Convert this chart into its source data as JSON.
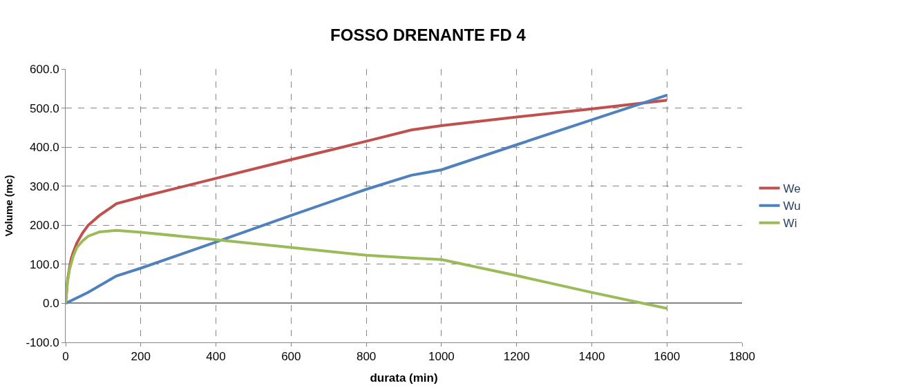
{
  "chart_data": {
    "type": "line",
    "title": "FOSSO DRENANTE FD 4",
    "xlabel": "durata (min)",
    "ylabel": "Volume (mc)",
    "xlim": [
      0,
      1800
    ],
    "xticks": [
      0,
      200,
      400,
      600,
      800,
      1000,
      1200,
      1400,
      1600,
      1800
    ],
    "ylim": [
      -100,
      600
    ],
    "yticks": [
      {
        "value": -100,
        "label": "-100.0"
      },
      {
        "value": 0,
        "label": "0.0"
      },
      {
        "value": 100,
        "label": "100.0"
      },
      {
        "value": 200,
        "label": "200.0"
      },
      {
        "value": 300,
        "label": "300.0"
      },
      {
        "value": 400,
        "label": "400.0"
      },
      {
        "value": 500,
        "label": "500.0"
      },
      {
        "value": 600,
        "label": "600.0"
      }
    ],
    "grid": true,
    "legend": "right",
    "marker": "none",
    "line_style": "solid",
    "series": [
      {
        "name": "We",
        "color": "#c0504d",
        "x": [
          0,
          5,
          10,
          15,
          20,
          30,
          45,
          60,
          90,
          120,
          135,
          200,
          400,
          600,
          800,
          920,
          1000,
          1200,
          1400,
          1600
        ],
        "values": [
          0,
          60,
          90,
          115,
          130,
          155,
          180,
          200,
          225,
          245,
          255,
          272,
          320,
          368,
          415,
          444,
          455,
          477,
          498,
          520
        ]
      },
      {
        "name": "Wu",
        "color": "#4f81bd",
        "x": [
          0,
          60,
          135,
          200,
          400,
          600,
          800,
          920,
          960,
          1000,
          1200,
          1400,
          1600
        ],
        "values": [
          0,
          28,
          70,
          90,
          157,
          225,
          292,
          328,
          335,
          342,
          406,
          470,
          533
        ]
      },
      {
        "name": "Wi",
        "color": "#9bbb59",
        "x": [
          0,
          5,
          10,
          20,
          30,
          45,
          60,
          90,
          135,
          200,
          400,
          600,
          800,
          920,
          1000,
          1200,
          1400,
          1600
        ],
        "values": [
          0,
          55,
          85,
          120,
          143,
          160,
          172,
          183,
          187,
          182,
          163,
          143,
          123,
          116,
          112,
          71,
          28,
          -13
        ]
      }
    ]
  }
}
